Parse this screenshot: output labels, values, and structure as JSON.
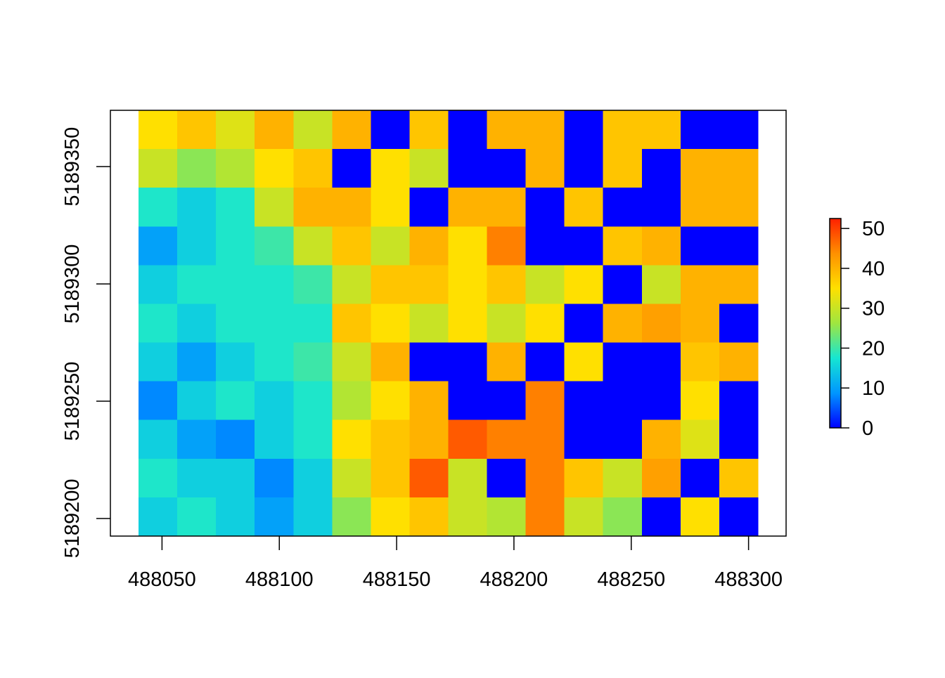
{
  "chart_data": {
    "type": "raster",
    "x_edges": [
      488040,
      488056.5,
      488073,
      488089.5,
      488106,
      488122.5,
      488139,
      488155.5,
      488172,
      488188.5,
      488205,
      488221.5,
      488238,
      488254.5,
      488271,
      488287.5,
      488304
    ],
    "y_edges": [
      5189374,
      5189357.5,
      5189341,
      5189324.5,
      5189308,
      5189291.5,
      5189275,
      5189258.5,
      5189242,
      5189225.5,
      5189209,
      5189192.5
    ],
    "values": [
      [
        35,
        38,
        32,
        40,
        30,
        40,
        0,
        38,
        0,
        40,
        40,
        0,
        38,
        38,
        0,
        0
      ],
      [
        30,
        25,
        28,
        35,
        38,
        0,
        35,
        30,
        0,
        0,
        40,
        0,
        38,
        0,
        40,
        40
      ],
      [
        18,
        15,
        18,
        30,
        40,
        40,
        35,
        0,
        40,
        40,
        0,
        38,
        0,
        0,
        40,
        40
      ],
      [
        10,
        15,
        18,
        20,
        30,
        38,
        30,
        40,
        35,
        45,
        0,
        0,
        38,
        40,
        0,
        0
      ],
      [
        15,
        18,
        18,
        18,
        20,
        30,
        38,
        38,
        35,
        38,
        30,
        35,
        0,
        30,
        40,
        40
      ],
      [
        18,
        15,
        18,
        18,
        18,
        38,
        35,
        30,
        35,
        30,
        35,
        0,
        40,
        42,
        40,
        0
      ],
      [
        15,
        10,
        15,
        18,
        20,
        30,
        40,
        0,
        0,
        40,
        0,
        35,
        0,
        0,
        38,
        40
      ],
      [
        8,
        15,
        18,
        15,
        18,
        28,
        35,
        40,
        0,
        0,
        45,
        0,
        0,
        0,
        35,
        0
      ],
      [
        15,
        10,
        8,
        15,
        18,
        35,
        38,
        40,
        48,
        45,
        45,
        0,
        0,
        40,
        32,
        0
      ],
      [
        18,
        15,
        15,
        8,
        15,
        30,
        38,
        48,
        30,
        0,
        45,
        38,
        30,
        42,
        0,
        38
      ],
      [
        15,
        18,
        15,
        10,
        15,
        25,
        35,
        38,
        30,
        28,
        45,
        30,
        25,
        0,
        35,
        0
      ]
    ],
    "colors": [
      "#0000ff",
      "#0096ff",
      "#16e6d2",
      "#9fe640",
      "#ffe000",
      "#ff9000",
      "#ff2000"
    ],
    "zlim": [
      0,
      52.5
    ],
    "zticks": [
      0,
      10,
      20,
      30,
      40,
      50
    ],
    "xlim": [
      488028,
      488316
    ],
    "xticks": [
      488050,
      488100,
      488150,
      488200,
      488250,
      488300
    ],
    "ylim": [
      5189192.5,
      5189374
    ],
    "yticks": [
      5189200,
      5189250,
      5189300,
      5189350
    ]
  }
}
